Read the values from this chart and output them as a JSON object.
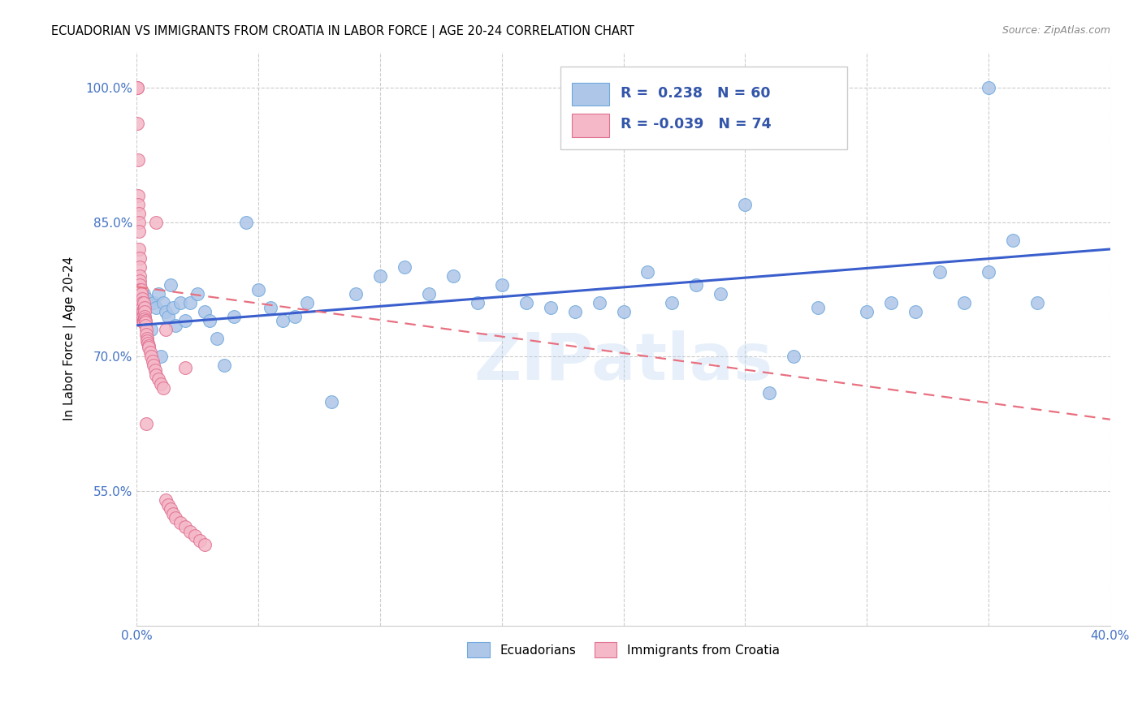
{
  "title": "ECUADORIAN VS IMMIGRANTS FROM CROATIA IN LABOR FORCE | AGE 20-24 CORRELATION CHART",
  "source": "Source: ZipAtlas.com",
  "ylabel": "In Labor Force | Age 20-24",
  "xmin": 0.0,
  "xmax": 0.4,
  "ymin": 0.4,
  "ymax": 1.04,
  "yticks": [
    0.55,
    0.7,
    0.85,
    1.0
  ],
  "ytick_labels": [
    "55.0%",
    "70.0%",
    "85.0%",
    "100.0%"
  ],
  "series1_color": "#aec6e8",
  "series1_edge": "#6fa8dc",
  "series2_color": "#f4b8c8",
  "series2_edge": "#e07090",
  "trendline1_color": "#3a5fcd",
  "trendline2_color": "#e87080",
  "R1": 0.238,
  "N1": 60,
  "R2": -0.039,
  "N2": 74,
  "watermark": "ZIPatlas",
  "legend_label1": "Ecuadorians",
  "legend_label2": "Immigrants from Croatia",
  "blue_scatter_x": [
    0.002,
    0.003,
    0.004,
    0.005,
    0.006,
    0.007,
    0.008,
    0.009,
    0.01,
    0.011,
    0.012,
    0.013,
    0.014,
    0.015,
    0.016,
    0.018,
    0.02,
    0.022,
    0.025,
    0.028,
    0.03,
    0.033,
    0.036,
    0.04,
    0.045,
    0.05,
    0.055,
    0.06,
    0.065,
    0.07,
    0.08,
    0.09,
    0.1,
    0.11,
    0.12,
    0.13,
    0.14,
    0.15,
    0.16,
    0.17,
    0.18,
    0.19,
    0.2,
    0.21,
    0.22,
    0.23,
    0.24,
    0.26,
    0.28,
    0.3,
    0.31,
    0.32,
    0.33,
    0.34,
    0.35,
    0.36,
    0.37,
    0.25,
    0.27,
    0.35
  ],
  "blue_scatter_y": [
    0.76,
    0.77,
    0.765,
    0.758,
    0.73,
    0.76,
    0.755,
    0.77,
    0.7,
    0.76,
    0.75,
    0.745,
    0.78,
    0.755,
    0.735,
    0.76,
    0.74,
    0.76,
    0.77,
    0.75,
    0.74,
    0.72,
    0.69,
    0.745,
    0.85,
    0.775,
    0.755,
    0.74,
    0.745,
    0.76,
    0.65,
    0.77,
    0.79,
    0.8,
    0.77,
    0.79,
    0.76,
    0.78,
    0.76,
    0.755,
    0.75,
    0.76,
    0.75,
    0.795,
    0.76,
    0.78,
    0.77,
    0.66,
    0.755,
    0.75,
    0.76,
    0.75,
    0.795,
    0.76,
    0.795,
    0.83,
    0.76,
    0.87,
    0.7,
    1.0
  ],
  "pink_scatter_x": [
    0.0002,
    0.0002,
    0.0004,
    0.0005,
    0.0006,
    0.0007,
    0.0008,
    0.0009,
    0.001,
    0.001,
    0.0011,
    0.0012,
    0.0012,
    0.0013,
    0.0014,
    0.0014,
    0.0015,
    0.0016,
    0.0017,
    0.0017,
    0.0018,
    0.0018,
    0.0019,
    0.002,
    0.002,
    0.0021,
    0.0022,
    0.0022,
    0.0023,
    0.0024,
    0.0025,
    0.0026,
    0.0027,
    0.0028,
    0.0029,
    0.003,
    0.0031,
    0.0032,
    0.0033,
    0.0034,
    0.0035,
    0.0036,
    0.0037,
    0.0038,
    0.004,
    0.0042,
    0.0044,
    0.0046,
    0.0048,
    0.005,
    0.0055,
    0.006,
    0.0065,
    0.007,
    0.0075,
    0.008,
    0.009,
    0.01,
    0.011,
    0.012,
    0.013,
    0.014,
    0.015,
    0.016,
    0.018,
    0.02,
    0.022,
    0.024,
    0.026,
    0.028,
    0.004,
    0.008,
    0.012,
    0.02
  ],
  "pink_scatter_y": [
    1.0,
    1.0,
    0.96,
    0.92,
    0.88,
    0.87,
    0.86,
    0.85,
    0.84,
    0.82,
    0.81,
    0.8,
    0.79,
    0.785,
    0.78,
    0.775,
    0.77,
    0.765,
    0.76,
    0.755,
    0.75,
    0.745,
    0.74,
    0.775,
    0.77,
    0.765,
    0.76,
    0.755,
    0.75,
    0.745,
    0.74,
    0.75,
    0.745,
    0.74,
    0.738,
    0.76,
    0.755,
    0.75,
    0.745,
    0.742,
    0.74,
    0.738,
    0.735,
    0.73,
    0.725,
    0.72,
    0.718,
    0.715,
    0.712,
    0.71,
    0.705,
    0.7,
    0.695,
    0.69,
    0.685,
    0.68,
    0.675,
    0.67,
    0.665,
    0.54,
    0.535,
    0.53,
    0.525,
    0.52,
    0.515,
    0.51,
    0.505,
    0.5,
    0.495,
    0.49,
    0.625,
    0.85,
    0.73,
    0.688
  ],
  "trendline1_x": [
    0.0,
    0.4
  ],
  "trendline1_y": [
    0.735,
    0.82
  ],
  "trendline2_x": [
    0.0,
    0.4
  ],
  "trendline2_y": [
    0.778,
    0.63
  ]
}
